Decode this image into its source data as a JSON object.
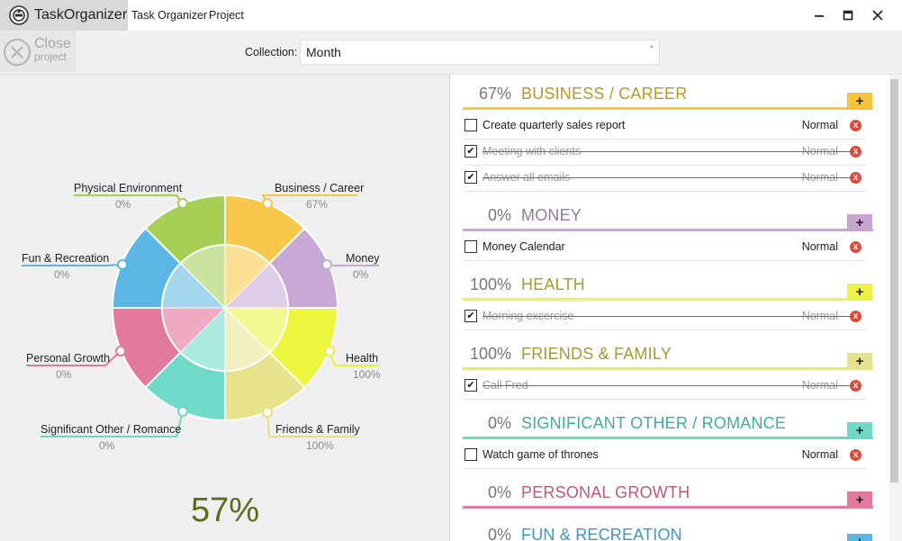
{
  "app": {
    "name": "TaskOrganizer",
    "menu": [
      "Task Organizer",
      "Project"
    ],
    "window_controls": [
      "minimize-icon",
      "maximize-icon",
      "close-icon"
    ]
  },
  "toolbar": {
    "close_label": "Close",
    "close_sub": "project",
    "collection_label": "Collection:",
    "collection_value": "Month"
  },
  "chart": {
    "overall": "57%",
    "segments": [
      {
        "name": "Business / Career",
        "pct": "67%",
        "value": 67,
        "outer": "#f9c84a",
        "inner": "#fbdf94",
        "line": "#f3c64d"
      },
      {
        "name": "Money",
        "pct": "0%",
        "value": 0,
        "outer": "#c7a8d4",
        "inner": "#dfcde7",
        "line": "#c7a8d4"
      },
      {
        "name": "Health",
        "pct": "100%",
        "value": 100,
        "outer": "#eef53f",
        "inner": "#f3f890",
        "line": "#eaf03a"
      },
      {
        "name": "Friends & Family",
        "pct": "100%",
        "value": 100,
        "outer": "#e7e38c",
        "inner": "#f1eec0",
        "line": "#e3df87"
      },
      {
        "name": "Significant Other / Romance",
        "pct": "0%",
        "value": 0,
        "outer": "#6edac7",
        "inner": "#abeadf",
        "line": "#6fd6c3"
      },
      {
        "name": "Personal Growth",
        "pct": "0%",
        "value": 0,
        "outer": "#e3789d",
        "inner": "#eeaac2",
        "line": "#e37a9c"
      },
      {
        "name": "Fun & Recreation",
        "pct": "0%",
        "value": 0,
        "outer": "#5bb6e4",
        "inner": "#a3d5ef",
        "line": "#5bb6e4"
      },
      {
        "name": "Physical Environment",
        "pct": "0%",
        "value": 0,
        "outer": "#a6d055",
        "inner": "#cae39f",
        "line": "#a3cf52"
      }
    ]
  },
  "categories": [
    {
      "pct": "67%",
      "name": "BUSINESS / CAREER",
      "color": "#b59a26",
      "line": "#f6c94f",
      "add": "#f6c43a",
      "tasks": [
        {
          "name": "Create quarterly sales report",
          "priority": "Normal",
          "done": false
        },
        {
          "name": "Meeting with clients",
          "priority": "Normal",
          "done": true
        },
        {
          "name": "Answer all emails",
          "priority": "Normal",
          "done": true
        }
      ]
    },
    {
      "pct": "0%",
      "name": "MONEY",
      "color": "#8f7a99",
      "line": "#c7a8d4",
      "add": "#c5a6d1",
      "tasks": [
        {
          "name": "Money Calendar",
          "priority": "Normal",
          "done": false
        }
      ]
    },
    {
      "pct": "100%",
      "name": "HEALTH",
      "color": "#9aa22e",
      "line": "#eef148",
      "add": "#eef148",
      "tasks": [
        {
          "name": "Morning excercise",
          "priority": "Normal",
          "done": true
        }
      ]
    },
    {
      "pct": "100%",
      "name": "FRIENDS & FAMILY",
      "color": "#a09b3c",
      "line": "#e6e38f",
      "add": "#e6e38f",
      "tasks": [
        {
          "name": "Call Fred",
          "priority": "Normal",
          "done": true
        }
      ]
    },
    {
      "pct": "0%",
      "name": "SIGNIFICANT OTHER / ROMANCE",
      "color": "#3fae9c",
      "line": "#6fd8c5",
      "add": "#6fd8c5",
      "tasks": [
        {
          "name": "Watch game of thrones",
          "priority": "Normal",
          "done": false
        }
      ]
    },
    {
      "pct": "0%",
      "name": "PERSONAL GROWTH",
      "color": "#c0577d",
      "line": "#e37a9c",
      "add": "#e37a9c",
      "tasks": []
    },
    {
      "pct": "0%",
      "name": "FUN & RECREATION",
      "color": "#3d95c6",
      "line": "#5bb6e4",
      "add": "#5bb6e4",
      "tasks": []
    }
  ],
  "icons": {
    "add": "+",
    "delete": "x"
  }
}
